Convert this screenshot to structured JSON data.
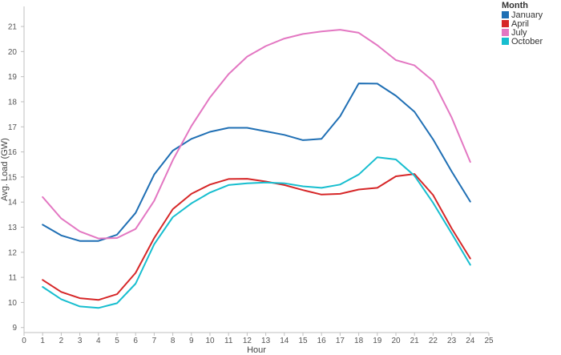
{
  "chart_data": {
    "type": "line",
    "xlabel": "Hour",
    "ylabel": "Avg. Load (GW)",
    "xlim": [
      0,
      25
    ],
    "ylim": [
      8.8,
      21.8
    ],
    "x_ticks": [
      0,
      1,
      2,
      3,
      4,
      5,
      6,
      7,
      8,
      9,
      10,
      11,
      12,
      13,
      14,
      15,
      16,
      17,
      18,
      19,
      20,
      21,
      22,
      23,
      24,
      25
    ],
    "y_ticks": [
      9,
      10,
      11,
      12,
      13,
      14,
      15,
      16,
      17,
      18,
      19,
      20,
      21
    ],
    "grid": false,
    "legend": {
      "title": "Month",
      "placement": "top-right"
    },
    "x": [
      1,
      2,
      3,
      4,
      5,
      6,
      7,
      8,
      9,
      10,
      11,
      12,
      13,
      14,
      15,
      16,
      17,
      18,
      19,
      20,
      21,
      22,
      23,
      24
    ],
    "series": [
      {
        "name": "January",
        "color": "#1f6fb4",
        "values": [
          13.1,
          12.67,
          12.45,
          12.45,
          12.7,
          13.57,
          15.1,
          16.05,
          16.52,
          16.8,
          16.96,
          16.96,
          16.82,
          16.68,
          16.47,
          16.52,
          17.42,
          18.73,
          18.72,
          18.24,
          17.6,
          16.5,
          15.22,
          14.02
        ]
      },
      {
        "name": "April",
        "color": "#d62728",
        "values": [
          10.9,
          10.42,
          10.17,
          10.1,
          10.33,
          11.18,
          12.57,
          13.72,
          14.33,
          14.7,
          14.92,
          14.93,
          14.82,
          14.68,
          14.48,
          14.3,
          14.33,
          14.5,
          14.57,
          15.03,
          15.12,
          14.28,
          12.95,
          11.75
        ]
      },
      {
        "name": "July",
        "color": "#e377c2",
        "values": [
          14.2,
          13.35,
          12.83,
          12.55,
          12.57,
          12.93,
          14.05,
          15.67,
          17.03,
          18.17,
          19.1,
          19.8,
          20.22,
          20.52,
          20.7,
          20.8,
          20.87,
          20.75,
          20.25,
          19.66,
          19.45,
          18.83,
          17.37,
          15.6
        ]
      },
      {
        "name": "October",
        "color": "#17becf",
        "values": [
          10.62,
          10.13,
          9.84,
          9.78,
          9.97,
          10.75,
          12.32,
          13.4,
          13.95,
          14.38,
          14.68,
          14.75,
          14.78,
          14.75,
          14.63,
          14.57,
          14.7,
          15.1,
          15.79,
          15.7,
          15.05,
          13.97,
          12.75,
          11.5
        ]
      }
    ]
  }
}
